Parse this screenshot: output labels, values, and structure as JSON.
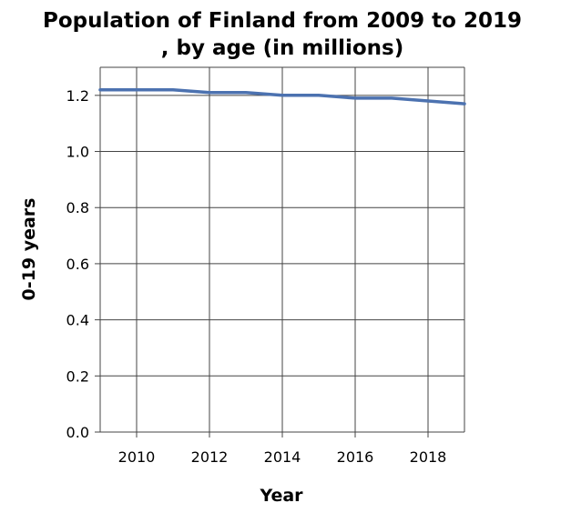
{
  "chart_data": {
    "type": "line",
    "title_lines": [
      "Population of Finland from 2009 to 2019",
      ", by age (in millions)"
    ],
    "xlabel": "Year",
    "ylabel": "0-19 years",
    "x": [
      2009,
      2010,
      2011,
      2012,
      2013,
      2014,
      2015,
      2016,
      2017,
      2018,
      2019
    ],
    "series": [
      {
        "values": [
          1.22,
          1.22,
          1.22,
          1.21,
          1.21,
          1.2,
          1.2,
          1.19,
          1.19,
          1.18,
          1.17
        ],
        "color": "#4c72b0"
      }
    ],
    "xlim": [
      2009,
      2019
    ],
    "ylim": [
      0,
      1.3
    ],
    "xticks": [
      "2010",
      "2012",
      "2014",
      "2016",
      "2018"
    ],
    "xtick_values": [
      2010,
      2012,
      2014,
      2016,
      2018
    ],
    "yticks": [
      "0.0",
      "0.2",
      "0.4",
      "0.6",
      "0.8",
      "1.0",
      "1.2"
    ],
    "ytick_values": [
      0,
      0.2,
      0.4,
      0.6,
      0.8,
      1.0,
      1.2
    ],
    "grid": true,
    "grid_color": "#444444",
    "background": "#ffffff"
  }
}
